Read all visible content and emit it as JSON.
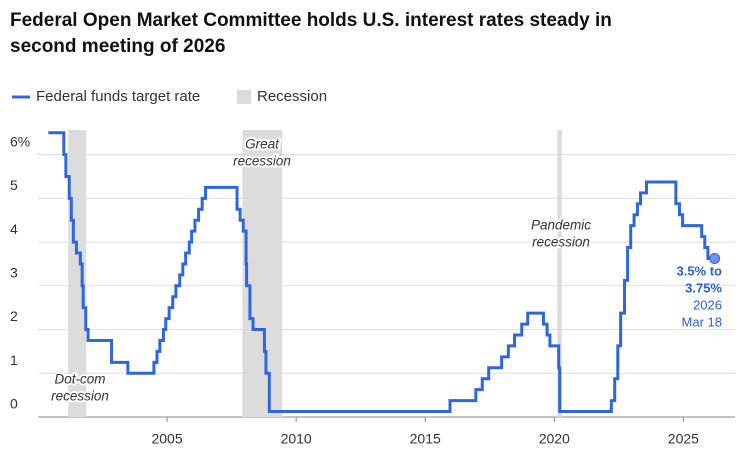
{
  "chart_data": {
    "type": "line",
    "step": true,
    "title": "Federal Open Market Committee holds U.S. interest rates steady in second meeting of 2026",
    "title_lines": [
      "Federal Open Market Committee holds U.S. interest rates steady in",
      "second meeting of 2026"
    ],
    "series": [
      {
        "name": "Federal funds target rate",
        "color": "#2f66dc",
        "x": [
          2000.4,
          2001.0,
          2001.08,
          2001.21,
          2001.29,
          2001.37,
          2001.49,
          2001.64,
          2001.71,
          2001.75,
          2001.85,
          2001.94,
          2002.85,
          2003.48,
          2004.49,
          2004.61,
          2004.72,
          2004.86,
          2004.95,
          2005.08,
          2005.22,
          2005.34,
          2005.49,
          2005.61,
          2005.72,
          2005.86,
          2005.95,
          2006.08,
          2006.22,
          2006.36,
          2006.49,
          2007.71,
          2007.83,
          2007.95,
          2008.06,
          2008.08,
          2008.21,
          2008.33,
          2008.77,
          2008.83,
          2008.96,
          2015.96,
          2016.96,
          2017.21,
          2017.46,
          2017.96,
          2018.22,
          2018.46,
          2018.74,
          2018.97,
          2019.58,
          2019.72,
          2019.83,
          2020.17,
          2020.21,
          2022.21,
          2022.34,
          2022.46,
          2022.57,
          2022.72,
          2022.84,
          2022.96,
          2023.09,
          2023.22,
          2023.34,
          2023.57,
          2024.71,
          2024.85,
          2024.97,
          2025.71,
          2025.83,
          2025.95,
          2026.21
        ],
        "values": [
          6.5,
          6.0,
          5.5,
          5.0,
          4.5,
          4.0,
          3.75,
          3.5,
          3.0,
          2.5,
          2.0,
          1.75,
          1.25,
          1.0,
          1.25,
          1.5,
          1.75,
          2.0,
          2.25,
          2.5,
          2.75,
          3.0,
          3.25,
          3.5,
          3.75,
          4.0,
          4.25,
          4.5,
          4.75,
          5.0,
          5.25,
          4.75,
          4.5,
          4.25,
          3.5,
          3.0,
          2.25,
          2.0,
          1.5,
          1.0,
          0.125,
          0.375,
          0.625,
          0.875,
          1.125,
          1.375,
          1.625,
          1.875,
          2.125,
          2.375,
          2.125,
          1.875,
          1.625,
          1.125,
          0.125,
          0.375,
          0.875,
          1.625,
          2.375,
          3.125,
          3.875,
          4.375,
          4.625,
          4.875,
          5.125,
          5.375,
          4.875,
          4.625,
          4.375,
          4.125,
          3.875,
          3.625,
          3.625
        ]
      }
    ],
    "recession_name": "Recession",
    "recession_color": "#dcdcdc",
    "recessions": [
      {
        "start": 2001.17,
        "end": 2001.87,
        "label_lines": [
          "Dot-com",
          "recession"
        ]
      },
      {
        "start": 2007.92,
        "end": 2009.46,
        "label_lines": [
          "Great",
          "recession"
        ]
      },
      {
        "start": 2020.12,
        "end": 2020.29,
        "label_lines": [
          "Pandemic",
          "recession"
        ]
      }
    ],
    "end_label": [
      "3.5% to",
      "3.75%",
      "2026",
      "Mar 18"
    ],
    "xlim": [
      2000,
      2027
    ],
    "xticks": [
      2005,
      2010,
      2015,
      2020,
      2025
    ],
    "ylim": [
      0,
      6.7
    ],
    "yticks": [
      0,
      1,
      2,
      3,
      4,
      5,
      {
        "value": 6,
        "label": "6%"
      }
    ],
    "grid": true
  }
}
